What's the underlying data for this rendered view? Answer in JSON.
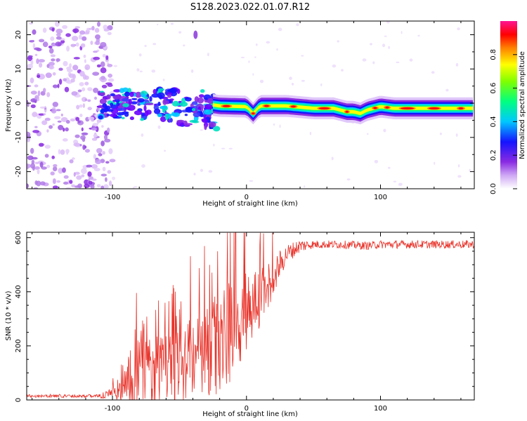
{
  "title": "S128.2023.022.01.07.R12",
  "chart_data": [
    {
      "type": "heatmap",
      "xlabel": "Height of straight line (km)",
      "ylabel": "Frequency (Hz)",
      "xlim": [
        -164,
        170
      ],
      "ylim": [
        -25,
        24
      ],
      "xticks": [
        -100,
        0,
        100
      ],
      "yticks": [
        -20,
        -10,
        0,
        10,
        20
      ],
      "colorbar": {
        "label": "Normalized spectral amplitude",
        "ticks": [
          0.0,
          0.2,
          0.4,
          0.6,
          0.8
        ],
        "range": [
          0,
          1
        ],
        "colormap": [
          "#ffffff",
          "#cfa8f5",
          "#8a2be2",
          "#1414ff",
          "#00c8ff",
          "#00ff80",
          "#ffff00",
          "#ff8000",
          "#ff0000",
          "#ff1493"
        ]
      },
      "ridge": {
        "x": [
          -25,
          -20,
          0,
          5,
          10,
          30,
          50,
          65,
          70,
          75,
          80,
          85,
          90,
          95,
          100,
          110,
          130,
          150,
          170
        ],
        "y": [
          -0.5,
          -0.8,
          -1.0,
          -3.0,
          -0.8,
          -0.8,
          -1.5,
          -1.5,
          -2.0,
          -2.5,
          -2.5,
          -3.0,
          -2.0,
          -1.5,
          -1.0,
          -1.5,
          -1.5,
          -1.5,
          -1.5
        ]
      }
    },
    {
      "type": "line",
      "xlabel": "Height of straight line (km)",
      "ylabel": "SNR (10 * v/v)",
      "xlim": [
        -164,
        170
      ],
      "ylim": [
        0,
        620
      ],
      "xticks": [
        -100,
        0,
        100
      ],
      "yticks": [
        0,
        200,
        400,
        600
      ],
      "color": "#e8332a",
      "envelope": {
        "x": [
          -164,
          -110,
          -100,
          -90,
          -80,
          -60,
          -40,
          -20,
          -10,
          -5,
          0,
          10,
          20,
          30,
          40,
          50,
          70,
          90,
          100,
          110,
          130,
          150,
          170
        ],
        "y": [
          15,
          15,
          20,
          60,
          100,
          120,
          140,
          200,
          270,
          300,
          340,
          370,
          460,
          540,
          570,
          575,
          575,
          570,
          575,
          575,
          575,
          575,
          575
        ]
      },
      "spread": {
        "x": [
          -164,
          -110,
          -95,
          -85,
          -70,
          -50,
          -30,
          -10,
          0,
          10,
          20,
          30,
          50,
          100,
          170
        ],
        "y": [
          6,
          6,
          40,
          140,
          120,
          140,
          170,
          220,
          160,
          130,
          70,
          35,
          15,
          15,
          15
        ]
      }
    }
  ]
}
